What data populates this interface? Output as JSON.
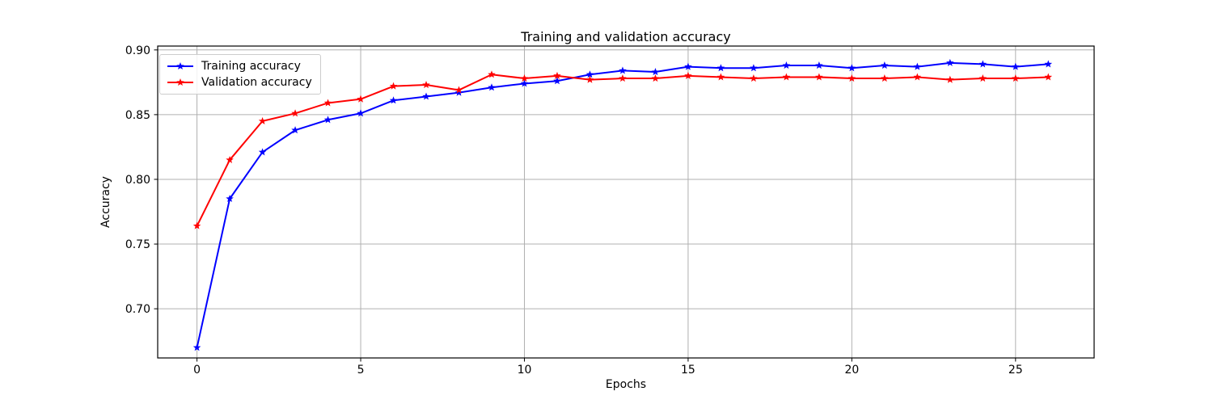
{
  "figure": {
    "background": "#ffffff"
  },
  "chart_data": {
    "type": "line",
    "title": "Training and validation accuracy",
    "xlabel": "Epochs",
    "ylabel": "Accuracy",
    "x": [
      0,
      1,
      2,
      3,
      4,
      5,
      6,
      7,
      8,
      9,
      10,
      11,
      12,
      13,
      14,
      15,
      16,
      17,
      18,
      19,
      20,
      21,
      22,
      23,
      24,
      25,
      26
    ],
    "series": [
      {
        "name": "Training accuracy",
        "color": "#0000ff",
        "marker": "star",
        "values": [
          0.67,
          0.785,
          0.821,
          0.838,
          0.846,
          0.851,
          0.861,
          0.864,
          0.867,
          0.871,
          0.874,
          0.876,
          0.881,
          0.884,
          0.883,
          0.887,
          0.886,
          0.886,
          0.888,
          0.888,
          0.886,
          0.888,
          0.887,
          0.89,
          0.889,
          0.887,
          0.889
        ]
      },
      {
        "name": "Validation accuracy",
        "color": "#ff0000",
        "marker": "star",
        "values": [
          0.764,
          0.815,
          0.845,
          0.851,
          0.859,
          0.862,
          0.872,
          0.873,
          0.869,
          0.881,
          0.878,
          0.88,
          0.877,
          0.878,
          0.878,
          0.88,
          0.879,
          0.878,
          0.879,
          0.879,
          0.878,
          0.878,
          0.879,
          0.877,
          0.878,
          0.878,
          0.879
        ]
      }
    ],
    "xlim": [
      -1.2,
      27.4
    ],
    "ylim": [
      0.662,
      0.903
    ],
    "xticks": [
      0,
      5,
      10,
      15,
      20,
      25
    ],
    "yticks": [
      0.7,
      0.75,
      0.8,
      0.85,
      0.9
    ],
    "grid": true,
    "legend": {
      "position": "upper left",
      "labels": [
        "Training accuracy",
        "Validation accuracy"
      ]
    },
    "colors": {
      "grid": "#b0b0b0",
      "axis": "#000000",
      "tick_text": "#000000"
    }
  }
}
